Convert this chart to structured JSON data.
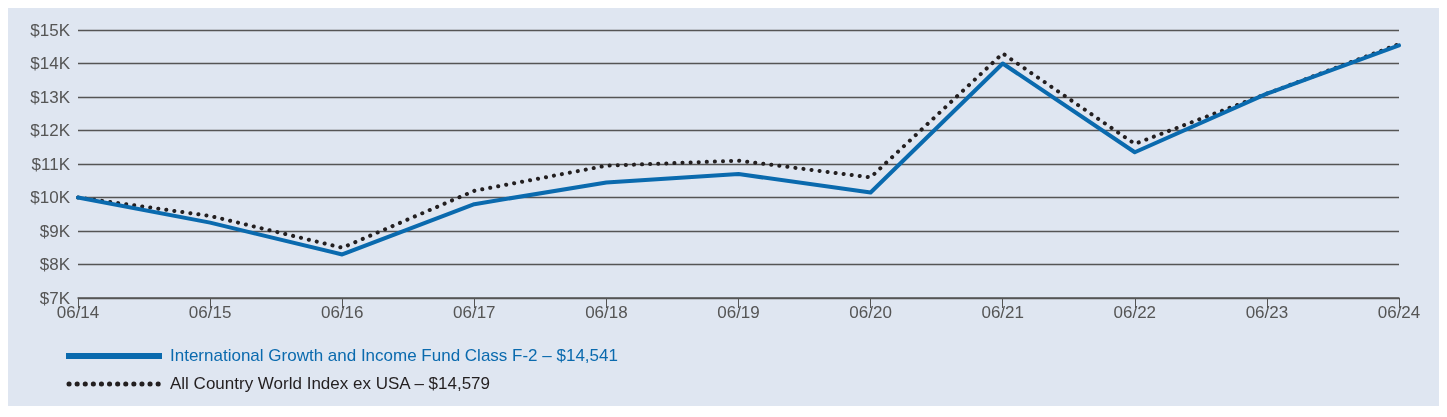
{
  "chart_data": {
    "type": "line",
    "categories": [
      "06/14",
      "06/15",
      "06/16",
      "06/17",
      "06/18",
      "06/19",
      "06/20",
      "06/21",
      "06/22",
      "06/23",
      "06/24"
    ],
    "series": [
      {
        "name": "International Growth and Income Fund Class F-2 – $14,541",
        "color": "#0a6aae",
        "line_style": "solid",
        "values": [
          10000,
          9250,
          8300,
          9800,
          10450,
          10700,
          10150,
          14000,
          11350,
          13100,
          14541
        ]
      },
      {
        "name": "All Country World Index ex USA – $14,579",
        "color": "#231f20",
        "line_style": "dotted",
        "values": [
          10000,
          9450,
          8500,
          10200,
          10950,
          11100,
          10600,
          14300,
          11600,
          13100,
          14579
        ]
      }
    ],
    "ylim": [
      7000,
      15000
    ],
    "yticks": [
      {
        "value": 7000,
        "label": "$7K"
      },
      {
        "value": 8000,
        "label": "$8K"
      },
      {
        "value": 9000,
        "label": "$9K"
      },
      {
        "value": 10000,
        "label": "$10K"
      },
      {
        "value": 11000,
        "label": "$11K"
      },
      {
        "value": 12000,
        "label": "$12K"
      },
      {
        "value": 13000,
        "label": "$13K"
      },
      {
        "value": 14000,
        "label": "$14K"
      },
      {
        "value": 15000,
        "label": "$15K"
      }
    ],
    "grid": "y",
    "legend": "bottom left",
    "marker": "none"
  }
}
